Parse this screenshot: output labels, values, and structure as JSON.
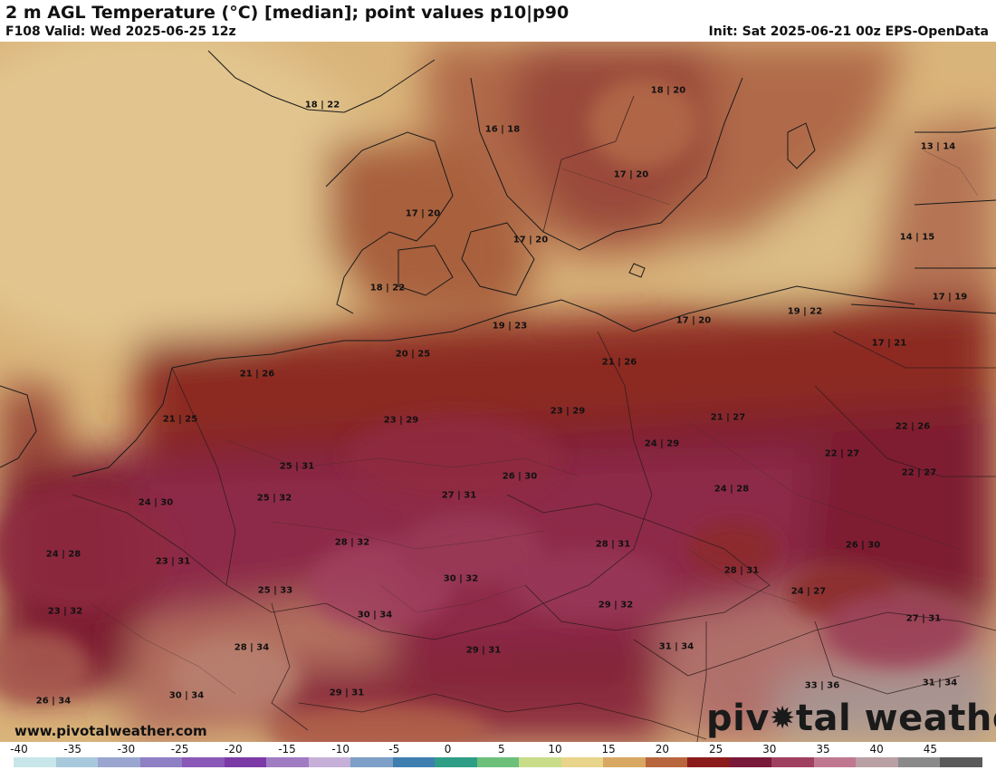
{
  "header": {
    "title": "2 m AGL Temperature (°C) [median]; point values p10|p90",
    "valid": "F108 Valid: Wed 2025-06-25 12z",
    "init": "Init: Sat 2025-06-21 00z EPS-OpenData"
  },
  "map": {
    "point_values": [
      {
        "id": "p01",
        "text": "18 | 22"
      },
      {
        "id": "p02",
        "text": "16 | 18"
      },
      {
        "id": "p03",
        "text": "18 | 20"
      },
      {
        "id": "p04",
        "text": "17 | 20"
      },
      {
        "id": "p05",
        "text": "13 | 14"
      },
      {
        "id": "p06",
        "text": "17 | 20"
      },
      {
        "id": "p07",
        "text": "17 | 20"
      },
      {
        "id": "p08",
        "text": "14 | 15"
      },
      {
        "id": "p09",
        "text": "18 | 22"
      },
      {
        "id": "p10",
        "text": "19 | 23"
      },
      {
        "id": "p11",
        "text": "17 | 19"
      },
      {
        "id": "p12",
        "text": "17 | 20"
      },
      {
        "id": "p13",
        "text": "19 | 22"
      },
      {
        "id": "p14",
        "text": "17 | 21"
      },
      {
        "id": "p15",
        "text": "20 | 25"
      },
      {
        "id": "p16",
        "text": "21 | 26"
      },
      {
        "id": "p17",
        "text": "21 | 26"
      },
      {
        "id": "p18",
        "text": "21 | 25"
      },
      {
        "id": "p19",
        "text": "23 | 29"
      },
      {
        "id": "p20",
        "text": "23 | 29"
      },
      {
        "id": "p21",
        "text": "21 | 27"
      },
      {
        "id": "p22",
        "text": "22 | 26"
      },
      {
        "id": "p23",
        "text": "24 | 29"
      },
      {
        "id": "p24",
        "text": "22 | 27"
      },
      {
        "id": "p25",
        "text": "25 | 31"
      },
      {
        "id": "p26",
        "text": "26 | 30"
      },
      {
        "id": "p27",
        "text": "22 | 27"
      },
      {
        "id": "p28",
        "text": "24 | 30"
      },
      {
        "id": "p29",
        "text": "25 | 32"
      },
      {
        "id": "p30",
        "text": "27 | 31"
      },
      {
        "id": "p31",
        "text": "24 | 28"
      },
      {
        "id": "p32",
        "text": "24 | 28"
      },
      {
        "id": "p33",
        "text": "28 | 32"
      },
      {
        "id": "p34",
        "text": "28 | 31"
      },
      {
        "id": "p35",
        "text": "26 | 30"
      },
      {
        "id": "p36",
        "text": "23 | 31"
      },
      {
        "id": "p37",
        "text": "30 | 32"
      },
      {
        "id": "p38",
        "text": "28 | 31"
      },
      {
        "id": "p39",
        "text": "25 | 33"
      },
      {
        "id": "p40",
        "text": "24 | 27"
      },
      {
        "id": "p41",
        "text": "23 | 32"
      },
      {
        "id": "p42",
        "text": "30 | 34"
      },
      {
        "id": "p43",
        "text": "29 | 32"
      },
      {
        "id": "p44",
        "text": "27 | 31"
      },
      {
        "id": "p45",
        "text": "28 | 34"
      },
      {
        "id": "p46",
        "text": "29 | 31"
      },
      {
        "id": "p47",
        "text": "31 | 34"
      },
      {
        "id": "p48",
        "text": "33 | 36"
      },
      {
        "id": "p49",
        "text": "31 | 34"
      },
      {
        "id": "p50",
        "text": "29 | 31"
      },
      {
        "id": "p51",
        "text": "26 | 34"
      },
      {
        "id": "p52",
        "text": "30 | 34"
      }
    ]
  },
  "footer": {
    "website": "www.pivotalweather.com",
    "logo_text_left": "piv",
    "logo_text_right": "tal weather",
    "logo_icon": "gear-icon"
  },
  "colorbar": {
    "ticks": [
      "-40",
      "-35",
      "-30",
      "-25",
      "-20",
      "-15",
      "-10",
      "-5",
      "0",
      "5",
      "10",
      "15",
      "20",
      "25",
      "30",
      "35",
      "40",
      "45"
    ],
    "colors": [
      "#c8e6ea",
      "#a8c9dc",
      "#9aa6d0",
      "#8f7fc4",
      "#8a58b6",
      "#7c3aa6",
      "#a07cc2",
      "#c6b0d8",
      "#7ea0c8",
      "#3f7fb0",
      "#2f9e86",
      "#6cc07a",
      "#c8dc8a",
      "#e8d48a",
      "#d8a862",
      "#b8663e",
      "#8c1c1c",
      "#7a1a3a",
      "#a04060",
      "#c07890",
      "#b8a0a4",
      "#8a8a8a",
      "#5a5a5a"
    ]
  }
}
